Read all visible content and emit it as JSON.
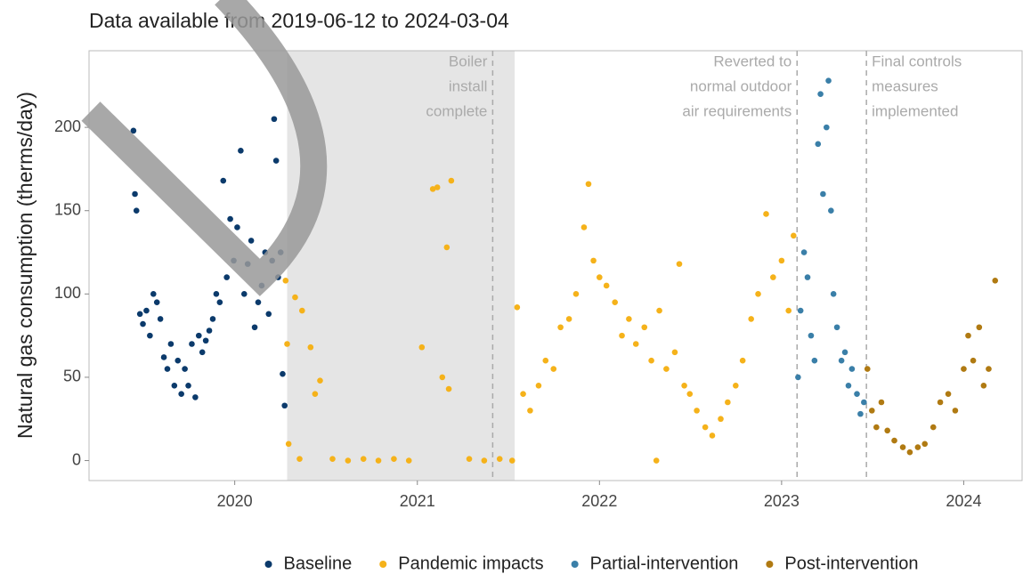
{
  "chart_data": {
    "type": "scatter",
    "subtitle": "Data available from 2019-06-12 to 2024-03-04",
    "y_label": "Natural gas consumption (therms/day)",
    "xlim": [
      "2019-03-15",
      "2024-04-27"
    ],
    "xticks": [
      {
        "value": "2020-01-01",
        "label": "2020"
      },
      {
        "value": "2021-01-01",
        "label": "2021"
      },
      {
        "value": "2022-01-01",
        "label": "2022"
      },
      {
        "value": "2023-01-01",
        "label": "2023"
      },
      {
        "value": "2024-01-01",
        "label": "2024"
      }
    ],
    "ylim": [
      -12,
      246
    ],
    "yticks": [
      0,
      50,
      100,
      150,
      200
    ],
    "shaded_period": [
      "2020-04-15",
      "2021-07-15"
    ],
    "annotations": [
      {
        "date": "2021-06-01",
        "align": "right",
        "lines": [
          "Boiler",
          "install",
          "complete"
        ]
      },
      {
        "date": "2023-02-01",
        "align": "right",
        "lines": [
          "Reverted to",
          "normal outdoor",
          "air requirements"
        ]
      },
      {
        "date": "2023-06-20",
        "align": "left",
        "lines": [
          "Final controls",
          "measures",
          "implemented"
        ]
      }
    ],
    "series": [
      {
        "name": "Baseline",
        "color": "#0b3a6b",
        "x": [
          "2019-06-12",
          "2019-06-15",
          "2019-06-18",
          "2019-06-25",
          "2019-07-01",
          "2019-07-08",
          "2019-07-15",
          "2019-07-22",
          "2019-07-29",
          "2019-08-05",
          "2019-08-12",
          "2019-08-19",
          "2019-08-26",
          "2019-09-02",
          "2019-09-09",
          "2019-09-16",
          "2019-09-23",
          "2019-09-30",
          "2019-10-07",
          "2019-10-14",
          "2019-10-21",
          "2019-10-28",
          "2019-11-04",
          "2019-11-11",
          "2019-11-18",
          "2019-11-25",
          "2019-12-02",
          "2019-12-09",
          "2019-12-16",
          "2019-12-23",
          "2019-12-30",
          "2020-01-06",
          "2020-01-13",
          "2020-01-20",
          "2020-01-27",
          "2020-02-03",
          "2020-02-10",
          "2020-02-17",
          "2020-02-24",
          "2020-03-02",
          "2020-03-09",
          "2020-03-16",
          "2020-03-20",
          "2020-03-24",
          "2020-03-28",
          "2020-04-02",
          "2020-04-06",
          "2020-04-10"
        ],
        "values": [
          198,
          160,
          150,
          88,
          82,
          90,
          75,
          100,
          95,
          85,
          62,
          55,
          70,
          45,
          60,
          40,
          55,
          45,
          70,
          38,
          75,
          65,
          72,
          78,
          85,
          100,
          95,
          168,
          110,
          145,
          120,
          140,
          186,
          100,
          118,
          132,
          80,
          95,
          105,
          125,
          88,
          120,
          205,
          180,
          110,
          125,
          52,
          33
        ]
      },
      {
        "name": "Pandemic impacts",
        "color": "#f5b21a",
        "x": [
          "2020-04-12",
          "2020-04-15",
          "2020-04-18",
          "2020-05-01",
          "2020-05-10",
          "2020-05-15",
          "2020-06-01",
          "2020-06-10",
          "2020-06-20",
          "2020-07-15",
          "2020-08-15",
          "2020-09-15",
          "2020-10-15",
          "2020-11-15",
          "2020-12-15",
          "2021-01-10",
          "2021-02-01",
          "2021-02-10",
          "2021-02-20",
          "2021-03-01",
          "2021-03-05",
          "2021-03-10",
          "2021-04-15",
          "2021-05-15",
          "2021-06-15",
          "2021-07-10",
          "2021-07-20",
          "2021-08-01",
          "2021-08-15",
          "2021-09-01",
          "2021-09-15",
          "2021-10-01",
          "2021-10-15",
          "2021-11-01",
          "2021-11-15",
          "2021-12-01",
          "2021-12-10",
          "2021-12-20",
          "2022-01-01",
          "2022-01-15",
          "2022-02-01",
          "2022-02-15",
          "2022-03-01",
          "2022-03-15",
          "2022-04-01",
          "2022-04-15",
          "2022-04-25",
          "2022-05-01",
          "2022-05-15",
          "2022-06-01",
          "2022-06-10",
          "2022-06-20",
          "2022-07-01",
          "2022-07-15",
          "2022-08-01",
          "2022-08-15",
          "2022-09-01",
          "2022-09-15",
          "2022-10-01",
          "2022-10-15",
          "2022-11-01",
          "2022-11-15",
          "2022-12-01",
          "2022-12-15",
          "2023-01-01",
          "2023-01-15",
          "2023-01-25"
        ],
        "values": [
          108,
          70,
          10,
          98,
          1,
          90,
          68,
          40,
          48,
          1,
          0,
          1,
          0,
          1,
          0,
          68,
          163,
          164,
          50,
          128,
          43,
          168,
          1,
          0,
          1,
          0,
          92,
          40,
          30,
          45,
          60,
          55,
          80,
          85,
          100,
          140,
          166,
          120,
          110,
          105,
          95,
          75,
          85,
          70,
          80,
          60,
          0,
          90,
          55,
          65,
          118,
          45,
          40,
          30,
          20,
          15,
          25,
          35,
          45,
          60,
          85,
          100,
          148,
          110,
          120,
          90,
          135
        ]
      },
      {
        "name": "Partial-intervention",
        "color": "#3a7fa8",
        "x": [
          "2023-02-03",
          "2023-02-08",
          "2023-02-15",
          "2023-02-22",
          "2023-03-01",
          "2023-03-08",
          "2023-03-15",
          "2023-03-20",
          "2023-03-25",
          "2023-04-01",
          "2023-04-05",
          "2023-04-10",
          "2023-04-15",
          "2023-04-22",
          "2023-05-01",
          "2023-05-08",
          "2023-05-15",
          "2023-05-22",
          "2023-06-01",
          "2023-06-08",
          "2023-06-15"
        ],
        "values": [
          50,
          90,
          125,
          110,
          75,
          60,
          190,
          220,
          160,
          200,
          228,
          150,
          100,
          80,
          60,
          65,
          45,
          55,
          40,
          28,
          35
        ]
      },
      {
        "name": "Post-intervention",
        "color": "#b07a12",
        "x": [
          "2023-06-22",
          "2023-07-01",
          "2023-07-10",
          "2023-07-20",
          "2023-08-01",
          "2023-08-15",
          "2023-09-01",
          "2023-09-15",
          "2023-10-01",
          "2023-10-15",
          "2023-11-01",
          "2023-11-15",
          "2023-12-01",
          "2023-12-15",
          "2024-01-01",
          "2024-01-10",
          "2024-01-20",
          "2024-02-01",
          "2024-02-10",
          "2024-02-20",
          "2024-03-04"
        ],
        "values": [
          55,
          30,
          20,
          35,
          18,
          12,
          8,
          5,
          8,
          10,
          20,
          35,
          40,
          30,
          55,
          75,
          60,
          80,
          45,
          55,
          108
        ]
      }
    ]
  }
}
